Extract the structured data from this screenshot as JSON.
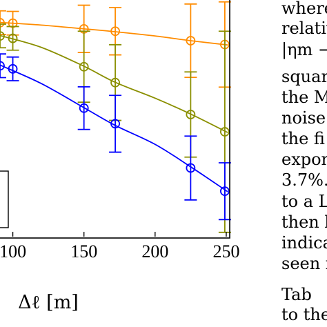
{
  "chart_data": {
    "type": "line",
    "xlabel": "Δℓ [m]",
    "xlim": [
      91,
      251
    ],
    "ylim": [
      0,
      1
    ],
    "x_ticks": [
      100,
      150,
      200,
      250
    ],
    "grid": false,
    "series": [
      {
        "color": "#ff8c00",
        "x": [
          91,
          100,
          150,
          172,
          225,
          249
        ],
        "y": [
          0.904,
          0.902,
          0.878,
          0.868,
          0.828,
          0.812
        ],
        "err": [
          0.05,
          0.05,
          0.1,
          0.1,
          0.155,
          0.18
        ],
        "curve": [
          [
            91,
            0.905
          ],
          [
            120,
            0.894
          ],
          [
            150,
            0.878
          ],
          [
            172,
            0.866
          ],
          [
            200,
            0.848
          ],
          [
            225,
            0.828
          ],
          [
            251,
            0.81
          ]
        ]
      },
      {
        "color": "#8a8f00",
        "x": [
          91,
          100,
          150,
          172,
          225,
          249
        ],
        "y": [
          0.848,
          0.838,
          0.718,
          0.651,
          0.516,
          0.443
        ],
        "err": [
          0.05,
          0.05,
          0.15,
          0.16,
          0.18,
          0.425
        ],
        "curve": [
          [
            91,
            0.85
          ],
          [
            120,
            0.8
          ],
          [
            150,
            0.72
          ],
          [
            172,
            0.652
          ],
          [
            200,
            0.585
          ],
          [
            225,
            0.518
          ],
          [
            251,
            0.44
          ]
        ]
      },
      {
        "color": "#0000ff",
        "x": [
          91,
          100,
          150,
          172,
          225,
          249
        ],
        "y": [
          0.722,
          0.709,
          0.543,
          0.477,
          0.29,
          0.192
        ],
        "err": [
          0.05,
          0.05,
          0.09,
          0.12,
          0.135,
          0.12
        ],
        "curve": [
          [
            91,
            0.725
          ],
          [
            120,
            0.647
          ],
          [
            150,
            0.545
          ],
          [
            172,
            0.47
          ],
          [
            200,
            0.39
          ],
          [
            225,
            0.295
          ],
          [
            251,
            0.19
          ]
        ]
      }
    ]
  },
  "side_text": {
    "lines": [
      "where",
      "relativ",
      "|ηm −",
      "square",
      "the M",
      "noise",
      "the fi",
      "expon",
      "3.7%.",
      "to a L",
      "then b",
      "indica",
      "seen i",
      "Tab",
      "to the"
    ]
  }
}
